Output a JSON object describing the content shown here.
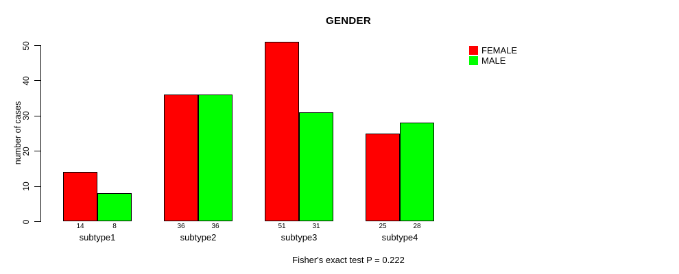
{
  "chart_data": {
    "type": "bar",
    "title": "GENDER",
    "xlabel": "",
    "ylabel": "number of cases",
    "categories": [
      "subtype1",
      "subtype2",
      "subtype3",
      "subtype4"
    ],
    "series": [
      {
        "name": "FEMALE",
        "color": "#ff0000",
        "values": [
          14,
          36,
          51,
          25
        ]
      },
      {
        "name": "MALE",
        "color": "#00ff00",
        "values": [
          8,
          36,
          31,
          28
        ]
      }
    ],
    "ylim": [
      0,
      50
    ],
    "yticks": [
      0,
      10,
      20,
      30,
      40,
      50
    ],
    "grid": false,
    "bar_value_labels_shown": true,
    "legend_position": "top-right",
    "axis_color": "#000000",
    "background_color": "#ffffff",
    "footnote": "Fisher's exact test P = 0.222"
  }
}
